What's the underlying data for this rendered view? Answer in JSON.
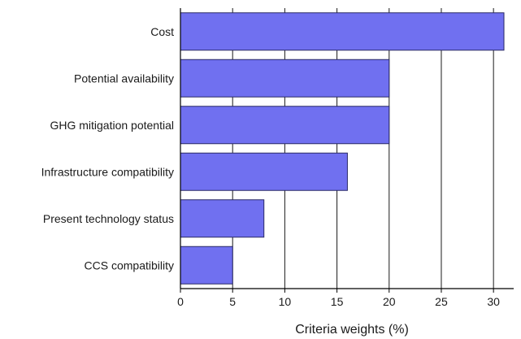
{
  "chart_data": {
    "type": "bar",
    "orientation": "horizontal",
    "categories": [
      "Cost",
      "Potential availability",
      "GHG mitigation potential",
      "Infrastructure compatibility",
      "Present technology status",
      "CCS compatibility"
    ],
    "values": [
      31,
      20,
      20,
      16,
      8,
      5
    ],
    "xlabel": "Criteria weights (%)",
    "ylabel": "",
    "xlim": [
      0,
      31
    ],
    "xticks": [
      0,
      5,
      10,
      15,
      20,
      25,
      30
    ],
    "grid": "vertical",
    "bar_color": "#7070f0",
    "bar_edge_color": "#2a2a66"
  }
}
